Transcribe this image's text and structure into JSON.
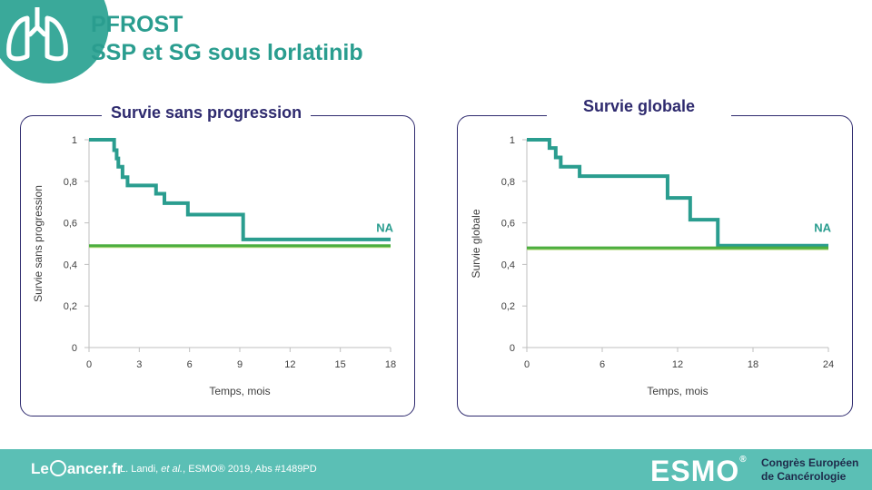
{
  "header": {
    "title_line1": "PFROST",
    "title_line2": "SSP et SG sous lorlatinib"
  },
  "footer": {
    "brand": "Le Cancer.fr",
    "citation_authors": "L. Landi,",
    "citation_etal": "et al.",
    "citation_rest": ", ESMO® 2019, Abs #1489PD",
    "esmo_logo": "ESMO",
    "congress_line1": "Congrès Européen",
    "congress_line2": "de Cancérologie"
  },
  "colors": {
    "teal": "#2a9d8f",
    "green": "#4cae3f",
    "navy": "#2e2a6e",
    "footer": "#5bbfb5"
  },
  "chart_data": [
    {
      "type": "line",
      "title": "Survie sans progression",
      "xlabel": "Temps, mois",
      "ylabel": "Survie sans progression",
      "xlim": [
        0,
        18
      ],
      "ylim": [
        0,
        1
      ],
      "xticks": [
        0,
        3,
        6,
        9,
        12,
        15,
        18
      ],
      "yticks": [
        0,
        0.2,
        0.4,
        0.6,
        0.8,
        1
      ],
      "ytick_labels": [
        "0",
        "0,2",
        "0,4",
        "0,6",
        "0,8",
        "1"
      ],
      "annotation": "NA",
      "series": [
        {
          "kind": "step",
          "x": [
            0,
            1.5,
            1.65,
            1.75,
            2.0,
            2.3,
            4.0,
            4.5,
            5.9,
            9.2,
            18
          ],
          "y": [
            1.0,
            0.95,
            0.91,
            0.87,
            0.82,
            0.78,
            0.74,
            0.695,
            0.64,
            0.52,
            0.52
          ]
        },
        {
          "kind": "reference",
          "x": [
            0,
            18
          ],
          "y": [
            0.49,
            0.49
          ]
        }
      ]
    },
    {
      "type": "line",
      "title": "Survie globale",
      "xlabel": "Temps, mois",
      "ylabel": "Survie globale",
      "xlim": [
        0,
        24
      ],
      "ylim": [
        0,
        1
      ],
      "xticks": [
        0,
        6,
        12,
        18,
        24
      ],
      "yticks": [
        0,
        0.2,
        0.4,
        0.6,
        0.8,
        1
      ],
      "ytick_labels": [
        "0",
        "0,2",
        "0,4",
        "0,6",
        "0,8",
        "1"
      ],
      "annotation": "NA",
      "series": [
        {
          "kind": "step",
          "x": [
            0,
            1.8,
            2.3,
            2.7,
            4.2,
            11.2,
            13.0,
            15.2,
            24
          ],
          "y": [
            1.0,
            0.96,
            0.915,
            0.87,
            0.825,
            0.72,
            0.615,
            0.49,
            0.49
          ]
        },
        {
          "kind": "reference",
          "x": [
            0,
            24
          ],
          "y": [
            0.48,
            0.48
          ]
        }
      ]
    }
  ]
}
